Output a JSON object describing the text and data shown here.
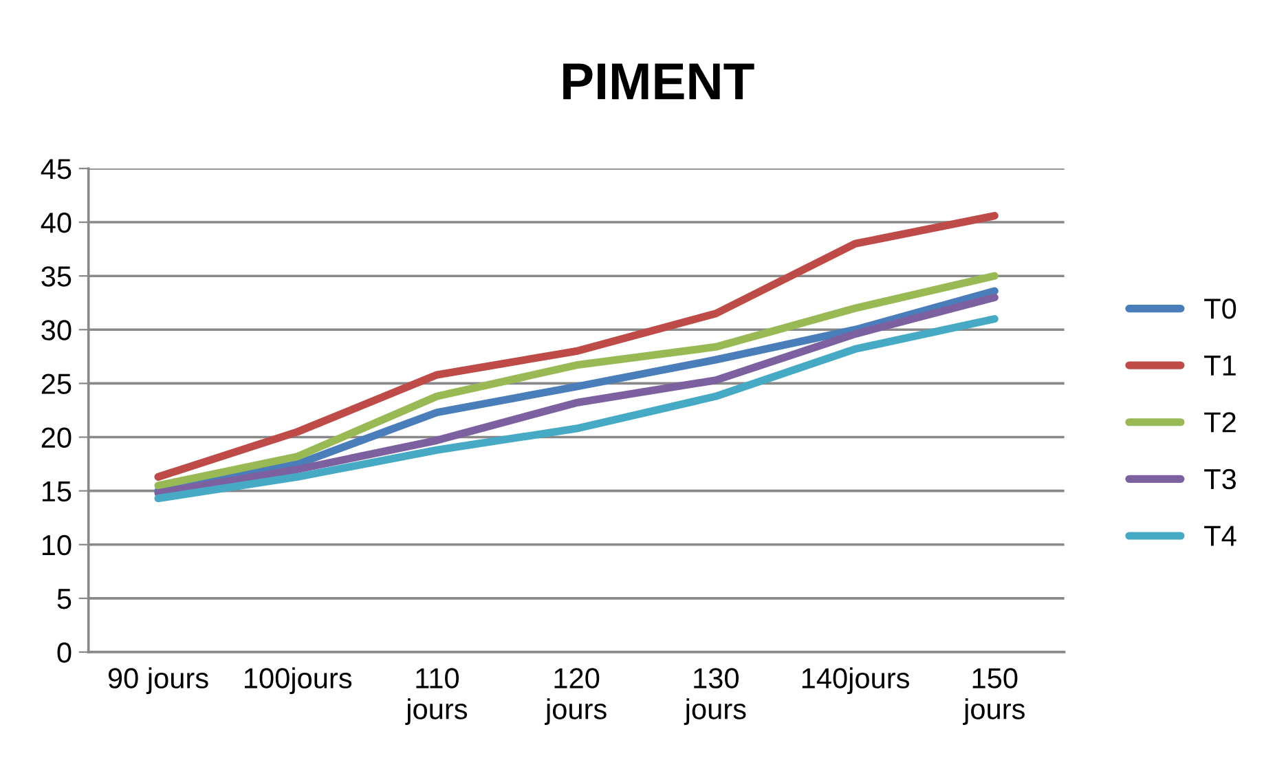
{
  "chart_data": {
    "type": "line",
    "title": "PIMENT",
    "categories": [
      "90 jours",
      "100jours",
      "110\njours",
      "120\njours",
      "130\njours",
      "140jours",
      "150\njours"
    ],
    "series": [
      {
        "name": "T0",
        "color": "#4a7ebb",
        "values": [
          15,
          17.5,
          22.3,
          24.7,
          27.2,
          30,
          33.6
        ]
      },
      {
        "name": "T1",
        "color": "#be4b48",
        "values": [
          16.3,
          20.5,
          25.8,
          28,
          31.5,
          38,
          40.6
        ]
      },
      {
        "name": "T2",
        "color": "#98b954",
        "values": [
          15.5,
          18.2,
          23.8,
          26.7,
          28.4,
          32,
          35
        ]
      },
      {
        "name": "T3",
        "color": "#7d60a0",
        "values": [
          14.8,
          17,
          19.7,
          23.2,
          25.3,
          29.6,
          33
        ]
      },
      {
        "name": "T4",
        "color": "#46aac5",
        "values": [
          14.3,
          16.3,
          18.8,
          20.8,
          23.8,
          28.2,
          31
        ]
      }
    ],
    "ylim": [
      0,
      45
    ],
    "yticks": [
      0,
      5,
      10,
      15,
      20,
      25,
      30,
      35,
      40,
      45
    ],
    "grid": "y",
    "legend": "right",
    "marker": "none",
    "line_style": "solid"
  }
}
